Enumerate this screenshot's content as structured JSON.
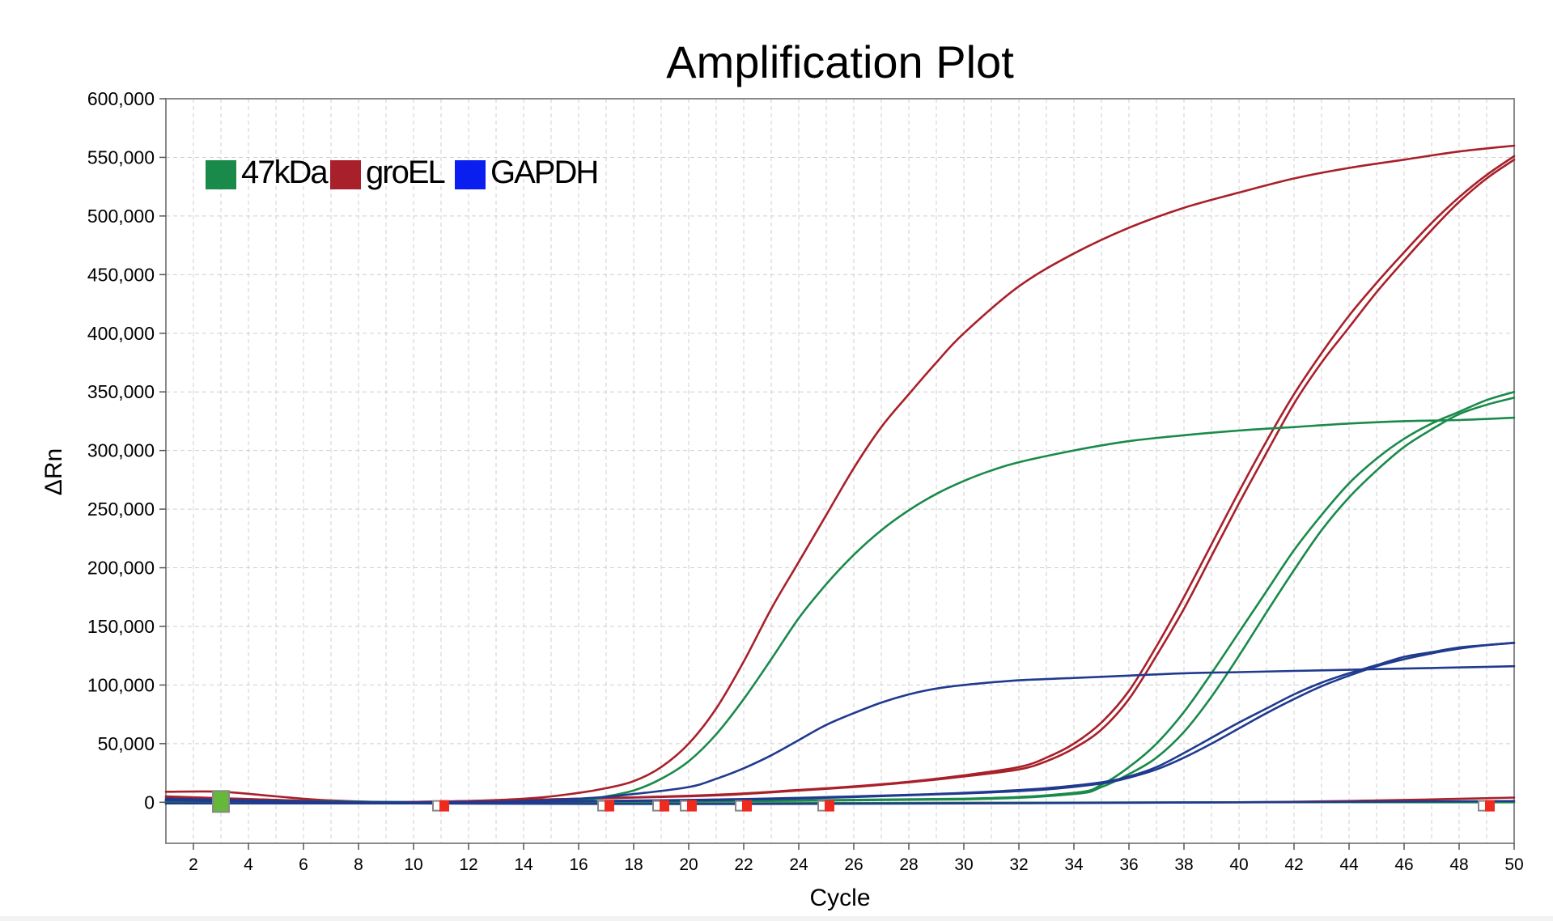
{
  "chart_data": {
    "type": "line",
    "title": "Amplification Plot",
    "xlabel": "Cycle",
    "ylabel": "ΔRn",
    "xlim": [
      1,
      50
    ],
    "ylim": [
      -35000,
      600000
    ],
    "x_ticks": [
      2,
      4,
      6,
      8,
      10,
      12,
      14,
      16,
      18,
      20,
      22,
      24,
      26,
      28,
      30,
      32,
      34,
      36,
      38,
      40,
      42,
      44,
      46,
      48,
      50
    ],
    "x_tick_labels": [
      "2",
      "4",
      "6",
      "8",
      "10",
      "12",
      "14",
      "16",
      "18",
      "20",
      "22",
      "24",
      "26",
      "28",
      "30",
      "32",
      "34",
      "36",
      "38",
      "40",
      "42",
      "44",
      "46",
      "48",
      "50"
    ],
    "y_ticks": [
      0,
      50000,
      100000,
      150000,
      200000,
      250000,
      300000,
      350000,
      400000,
      450000,
      500000,
      550000,
      600000
    ],
    "y_tick_labels": [
      "0",
      "50,000",
      "100,000",
      "150,000",
      "200,000",
      "250,000",
      "300,000",
      "350,000",
      "400,000",
      "450,000",
      "500,000",
      "550,000",
      "600,000"
    ],
    "grid": true,
    "legend_position": "top-left",
    "legend": [
      {
        "label": "47kDa",
        "color": "#1a8a4a"
      },
      {
        "label": "groEL",
        "color": "#a8202a"
      },
      {
        "label": "GAPDH",
        "color": "#0a1ef0"
      }
    ],
    "series": [
      {
        "group": "groEL",
        "color": "#a8202a",
        "points": [
          [
            1,
            9000
          ],
          [
            3,
            9000
          ],
          [
            5,
            5000
          ],
          [
            7,
            1500
          ],
          [
            10,
            0
          ],
          [
            14,
            3000
          ],
          [
            16,
            8000
          ],
          [
            17,
            12000
          ],
          [
            18,
            18000
          ],
          [
            19,
            30000
          ],
          [
            20,
            50000
          ],
          [
            21,
            80000
          ],
          [
            22,
            120000
          ],
          [
            23,
            165000
          ],
          [
            24,
            205000
          ],
          [
            25,
            245000
          ],
          [
            26,
            285000
          ],
          [
            27,
            320000
          ],
          [
            28,
            348000
          ],
          [
            29,
            375000
          ],
          [
            30,
            400000
          ],
          [
            32,
            440000
          ],
          [
            34,
            468000
          ],
          [
            36,
            490000
          ],
          [
            38,
            507000
          ],
          [
            40,
            520000
          ],
          [
            42,
            532000
          ],
          [
            44,
            541000
          ],
          [
            46,
            548000
          ],
          [
            48,
            555000
          ],
          [
            50,
            560000
          ]
        ]
      },
      {
        "group": "groEL",
        "color": "#a8202a",
        "points": [
          [
            1,
            5000
          ],
          [
            5,
            2000
          ],
          [
            8,
            0
          ],
          [
            12,
            1000
          ],
          [
            16,
            3000
          ],
          [
            20,
            5000
          ],
          [
            22,
            7000
          ],
          [
            24,
            10000
          ],
          [
            26,
            13000
          ],
          [
            28,
            17000
          ],
          [
            30,
            22000
          ],
          [
            32,
            28000
          ],
          [
            33,
            35000
          ],
          [
            34,
            46000
          ],
          [
            35,
            62000
          ],
          [
            36,
            88000
          ],
          [
            37,
            125000
          ],
          [
            38,
            165000
          ],
          [
            39,
            210000
          ],
          [
            40,
            255000
          ],
          [
            41,
            298000
          ],
          [
            42,
            340000
          ],
          [
            43,
            375000
          ],
          [
            44,
            405000
          ],
          [
            45,
            435000
          ],
          [
            46,
            462000
          ],
          [
            47,
            488000
          ],
          [
            48,
            512000
          ],
          [
            49,
            532000
          ],
          [
            50,
            548000
          ]
        ]
      },
      {
        "group": "groEL",
        "color": "#a8202a",
        "points": [
          [
            1,
            4500
          ],
          [
            5,
            2000
          ],
          [
            8,
            0
          ],
          [
            12,
            1000
          ],
          [
            16,
            3000
          ],
          [
            20,
            5500
          ],
          [
            22,
            7500
          ],
          [
            24,
            10500
          ],
          [
            26,
            13500
          ],
          [
            28,
            17500
          ],
          [
            30,
            23000
          ],
          [
            32,
            30000
          ],
          [
            33,
            38000
          ],
          [
            34,
            50000
          ],
          [
            35,
            68000
          ],
          [
            36,
            95000
          ],
          [
            37,
            133000
          ],
          [
            38,
            175000
          ],
          [
            39,
            220000
          ],
          [
            40,
            265000
          ],
          [
            41,
            308000
          ],
          [
            42,
            348000
          ],
          [
            43,
            383000
          ],
          [
            44,
            415000
          ],
          [
            45,
            443000
          ],
          [
            46,
            469000
          ],
          [
            47,
            494000
          ],
          [
            48,
            516000
          ],
          [
            49,
            535000
          ],
          [
            50,
            551000
          ]
        ]
      },
      {
        "group": "groEL",
        "color": "#a8202a",
        "points": [
          [
            1,
            -1000
          ],
          [
            10,
            -1000
          ],
          [
            20,
            -1000
          ],
          [
            30,
            -500
          ],
          [
            40,
            0
          ],
          [
            45,
            1500
          ],
          [
            50,
            4000
          ]
        ]
      },
      {
        "group": "47kDa",
        "color": "#1a8a4a",
        "points": [
          [
            1,
            2000
          ],
          [
            8,
            500
          ],
          [
            12,
            0
          ],
          [
            16,
            2000
          ],
          [
            17,
            5000
          ],
          [
            18,
            10000
          ],
          [
            19,
            20000
          ],
          [
            20,
            35000
          ],
          [
            21,
            58000
          ],
          [
            22,
            88000
          ],
          [
            23,
            122000
          ],
          [
            24,
            157000
          ],
          [
            25,
            186000
          ],
          [
            26,
            211000
          ],
          [
            27,
            232000
          ],
          [
            28,
            249000
          ],
          [
            29,
            263000
          ],
          [
            30,
            274000
          ],
          [
            31,
            283000
          ],
          [
            32,
            290000
          ],
          [
            34,
            300000
          ],
          [
            36,
            308000
          ],
          [
            38,
            313000
          ],
          [
            40,
            317000
          ],
          [
            42,
            320000
          ],
          [
            44,
            323000
          ],
          [
            46,
            325000
          ],
          [
            48,
            326000
          ],
          [
            50,
            328000
          ]
        ]
      },
      {
        "group": "47kDa",
        "color": "#1a8a4a",
        "points": [
          [
            1,
            1000
          ],
          [
            10,
            0
          ],
          [
            20,
            1000
          ],
          [
            30,
            3000
          ],
          [
            34,
            8000
          ],
          [
            35,
            15000
          ],
          [
            36,
            30000
          ],
          [
            37,
            50000
          ],
          [
            38,
            77000
          ],
          [
            39,
            110000
          ],
          [
            40,
            145000
          ],
          [
            41,
            180000
          ],
          [
            42,
            215000
          ],
          [
            43,
            245000
          ],
          [
            44,
            272000
          ],
          [
            45,
            293000
          ],
          [
            46,
            310000
          ],
          [
            47,
            323000
          ],
          [
            48,
            333000
          ],
          [
            49,
            343000
          ],
          [
            50,
            350000
          ]
        ]
      },
      {
        "group": "47kDa",
        "color": "#1a8a4a",
        "points": [
          [
            1,
            500
          ],
          [
            10,
            0
          ],
          [
            20,
            800
          ],
          [
            30,
            2500
          ],
          [
            34,
            7000
          ],
          [
            35,
            13000
          ],
          [
            36,
            24000
          ],
          [
            37,
            38000
          ],
          [
            38,
            60000
          ],
          [
            39,
            90000
          ],
          [
            40,
            125000
          ],
          [
            41,
            162000
          ],
          [
            42,
            198000
          ],
          [
            43,
            232000
          ],
          [
            44,
            260000
          ],
          [
            45,
            283000
          ],
          [
            46,
            303000
          ],
          [
            47,
            318000
          ],
          [
            48,
            331000
          ],
          [
            49,
            339000
          ],
          [
            50,
            345000
          ]
        ]
      },
      {
        "group": "47kDa",
        "color": "#1a8a4a",
        "points": [
          [
            1,
            -500
          ],
          [
            10,
            -1000
          ],
          [
            20,
            -1000
          ],
          [
            30,
            -500
          ],
          [
            40,
            0
          ],
          [
            50,
            0
          ]
        ]
      },
      {
        "group": "GAPDH",
        "color": "#1f3a8f",
        "points": [
          [
            1,
            3000
          ],
          [
            8,
            0
          ],
          [
            12,
            0
          ],
          [
            16,
            3000
          ],
          [
            18,
            7000
          ],
          [
            20,
            13000
          ],
          [
            21,
            20000
          ],
          [
            22,
            29000
          ],
          [
            23,
            40000
          ],
          [
            24,
            53000
          ],
          [
            25,
            66000
          ],
          [
            26,
            76000
          ],
          [
            27,
            85000
          ],
          [
            28,
            92000
          ],
          [
            29,
            97000
          ],
          [
            30,
            100000
          ],
          [
            32,
            104000
          ],
          [
            34,
            106000
          ],
          [
            36,
            108000
          ],
          [
            38,
            110000
          ],
          [
            40,
            111000
          ],
          [
            42,
            112000
          ],
          [
            44,
            113000
          ],
          [
            46,
            114000
          ],
          [
            48,
            115000
          ],
          [
            50,
            116000
          ]
        ]
      },
      {
        "group": "GAPDH",
        "color": "#1f3a8f",
        "points": [
          [
            1,
            2000
          ],
          [
            10,
            0
          ],
          [
            20,
            2000
          ],
          [
            26,
            5000
          ],
          [
            30,
            8000
          ],
          [
            33,
            12000
          ],
          [
            35,
            17000
          ],
          [
            36,
            22000
          ],
          [
            37,
            30000
          ],
          [
            38,
            42000
          ],
          [
            39,
            55000
          ],
          [
            40,
            68000
          ],
          [
            41,
            80000
          ],
          [
            42,
            92000
          ],
          [
            43,
            102000
          ],
          [
            44,
            110000
          ],
          [
            45,
            117000
          ],
          [
            46,
            124000
          ],
          [
            47,
            128000
          ],
          [
            48,
            132000
          ],
          [
            49,
            134000
          ],
          [
            50,
            136000
          ]
        ]
      },
      {
        "group": "GAPDH",
        "color": "#1f3a8f",
        "points": [
          [
            1,
            1500
          ],
          [
            10,
            0
          ],
          [
            20,
            1500
          ],
          [
            26,
            4500
          ],
          [
            30,
            7500
          ],
          [
            33,
            11000
          ],
          [
            35,
            16000
          ],
          [
            36,
            21000
          ],
          [
            37,
            28000
          ],
          [
            38,
            38000
          ],
          [
            39,
            50000
          ],
          [
            40,
            63000
          ],
          [
            41,
            76000
          ],
          [
            42,
            88000
          ],
          [
            43,
            99000
          ],
          [
            44,
            108000
          ],
          [
            45,
            116000
          ],
          [
            46,
            122000
          ],
          [
            47,
            127000
          ],
          [
            48,
            131000
          ],
          [
            49,
            134000
          ],
          [
            50,
            136000
          ]
        ]
      },
      {
        "group": "GAPDH",
        "color": "#1f3a8f",
        "points": [
          [
            1,
            -1000
          ],
          [
            10,
            -1000
          ],
          [
            20,
            -1500
          ],
          [
            30,
            -1000
          ],
          [
            40,
            0
          ],
          [
            50,
            1000
          ]
        ]
      }
    ],
    "markers": [
      {
        "x": 3,
        "y": 0,
        "color": "#66b83a",
        "type": "start"
      },
      {
        "x": 11,
        "y": -3000,
        "color": "#ef2a1e",
        "type": "threshold"
      },
      {
        "x": 17,
        "y": -3000,
        "color": "#ef2a1e",
        "type": "threshold"
      },
      {
        "x": 19,
        "y": -3000,
        "color": "#ef2a1e",
        "type": "threshold"
      },
      {
        "x": 20,
        "y": -3000,
        "color": "#ef2a1e",
        "type": "threshold"
      },
      {
        "x": 22,
        "y": -3000,
        "color": "#ef2a1e",
        "type": "threshold"
      },
      {
        "x": 25,
        "y": -3000,
        "color": "#ef2a1e",
        "type": "threshold"
      },
      {
        "x": 49,
        "y": -3000,
        "color": "#ef2a1e",
        "type": "threshold"
      }
    ]
  }
}
